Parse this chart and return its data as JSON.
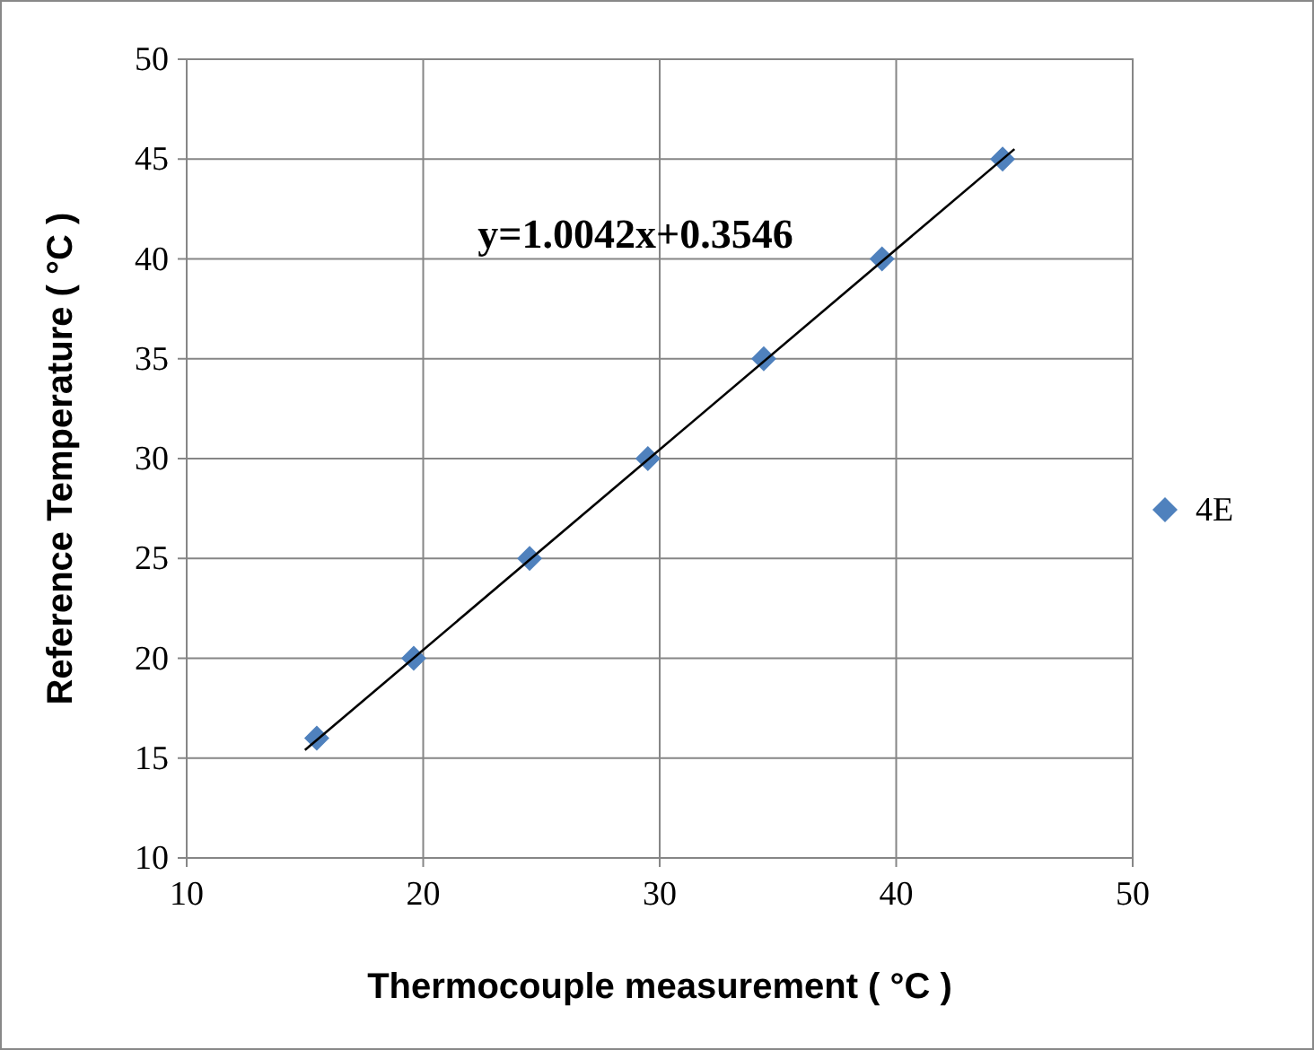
{
  "chart_data": {
    "type": "scatter",
    "xlabel": "Thermocouple measurement ( °C )",
    "ylabel": "Reference Temperature ( °C )",
    "annotations": [
      "y=1.0042x+0.3546"
    ],
    "series": [
      {
        "name": "4E",
        "color": "#4f81bd",
        "marker": "diamond",
        "x": [
          15.5,
          19.6,
          24.5,
          29.5,
          34.4,
          39.4,
          44.5
        ],
        "values": [
          16,
          20,
          25,
          30,
          35,
          40,
          45
        ]
      },
      {
        "type": "line",
        "color": "#000000",
        "marker": "none",
        "line_style": "solid",
        "x": [
          15,
          45
        ],
        "values": [
          15.4,
          45.5
        ]
      }
    ],
    "xlim": [
      10,
      50
    ],
    "xticks": [
      10,
      20,
      30,
      40,
      50
    ],
    "ylim": [
      10,
      50
    ],
    "yticks": [
      10,
      15,
      20,
      25,
      30,
      35,
      40,
      45,
      50
    ],
    "grid": true,
    "legend": "right"
  }
}
